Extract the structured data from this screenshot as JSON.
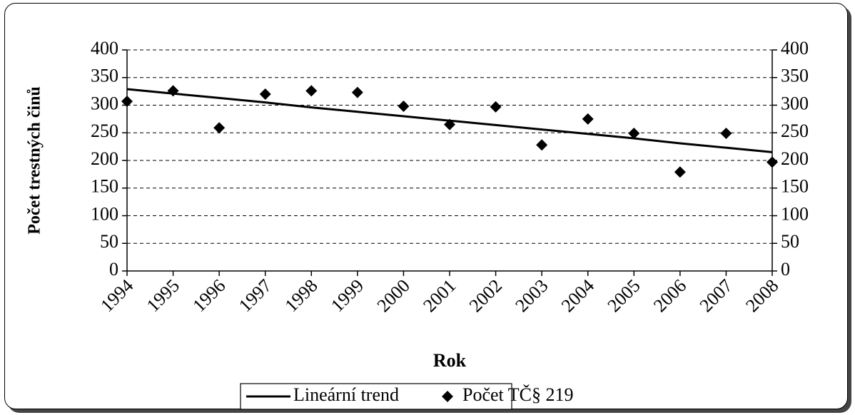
{
  "chart_data": {
    "type": "line",
    "xlabel": "Rok",
    "ylabel": "Počet trestných činů",
    "categories": [
      "1994",
      "1995",
      "1996",
      "1997",
      "1998",
      "1999",
      "2000",
      "2001",
      "2002",
      "2003",
      "2004",
      "2005",
      "2006",
      "2007",
      "2008"
    ],
    "series": [
      {
        "name": "Lineární trend",
        "type": "line",
        "color": "#000000",
        "values": [
          329,
          321,
          313,
          305,
          296,
          288,
          280,
          272,
          264,
          256,
          248,
          240,
          231,
          223,
          215
        ]
      },
      {
        "name": "Počet TČ§ 219",
        "type": "scatter",
        "color": "#000000",
        "values": [
          307,
          326,
          259,
          320,
          326,
          323,
          298,
          265,
          297,
          228,
          275,
          249,
          179,
          249,
          197
        ]
      }
    ],
    "ylim": [
      0,
      400
    ],
    "yticks": [
      0,
      50,
      100,
      150,
      200,
      250,
      300,
      350,
      400
    ],
    "y2lim": [
      0,
      400
    ],
    "y2ticks": [
      0,
      50,
      100,
      150,
      200,
      250,
      300,
      350,
      400
    ],
    "grid": true
  }
}
